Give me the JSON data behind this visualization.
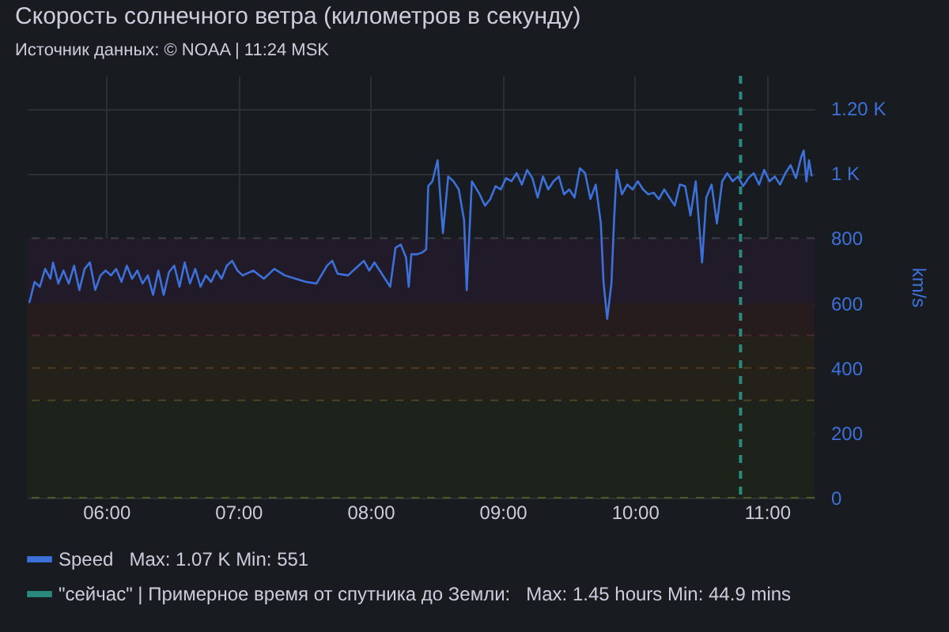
{
  "chart_data": {
    "type": "line",
    "title": "Скорость солнечного ветра (километров в секунду)",
    "subtitle": "Источник данных: © NOAA | 11:24 MSK",
    "ylabel": "km/s",
    "annotations": [
      "Max: 1.07 K  Min: 551",
      "Max: 1.45 hours  Min: 44.9 mins"
    ],
    "xlim": [
      5.4,
      11.36
    ],
    "xticks": [
      {
        "value": 6,
        "label": "06:00"
      },
      {
        "value": 7,
        "label": "07:00"
      },
      {
        "value": 8,
        "label": "08:00"
      },
      {
        "value": 9,
        "label": "09:00"
      },
      {
        "value": 10,
        "label": "10:00"
      },
      {
        "value": 11,
        "label": "11:00"
      }
    ],
    "ylim": [
      0,
      1300
    ],
    "yticks": [
      0,
      200,
      400,
      600,
      800,
      {
        "value": 1000,
        "label": "1 K"
      },
      {
        "value": 1200,
        "label": "1.20 K"
      }
    ],
    "grid": true,
    "legend": "bottom",
    "line_style": "solid",
    "bands": [
      {
        "axis": "y",
        "from": 0,
        "to": 300,
        "label": null,
        "color": "#1d231b"
      },
      {
        "axis": "y",
        "from": 300,
        "to": 500,
        "label": null,
        "color": "#232119"
      },
      {
        "axis": "y",
        "from": 500,
        "to": 600,
        "label": null,
        "color": "#261c1e"
      },
      {
        "axis": "y",
        "from": 600,
        "to": 800,
        "label": null,
        "color": "#211b29"
      }
    ],
    "ref_lines": [
      {
        "axis": "y",
        "value": 0,
        "label": null,
        "color": "#4a5a22",
        "line_style": "dashed"
      },
      {
        "axis": "y",
        "value": 300,
        "label": null,
        "color": "#4a4622",
        "line_style": "dashed"
      },
      {
        "axis": "y",
        "value": 400,
        "label": null,
        "color": "#553a22",
        "line_style": "dashed"
      },
      {
        "axis": "y",
        "value": 500,
        "label": null,
        "color": "#4a2a26",
        "line_style": "dashed"
      },
      {
        "axis": "y",
        "value": 800,
        "label": null,
        "color": "#3a4048",
        "line_style": "dashed"
      },
      {
        "axis": "x",
        "value": 10.8,
        "label": "\"сейчас\" | Примерное время от спутника до Земли:",
        "color": "#2a8a7e",
        "line_style": "dashed"
      }
    ],
    "series": [
      {
        "name": "Speed",
        "color": "#3d71d9",
        "x": [
          5.418,
          5.458,
          5.498,
          5.538,
          5.578,
          5.598,
          5.638,
          5.677,
          5.717,
          5.757,
          5.797,
          5.837,
          5.877,
          5.917,
          5.957,
          5.996,
          6.036,
          6.076,
          6.116,
          6.156,
          6.196,
          6.236,
          6.275,
          6.315,
          6.355,
          6.395,
          6.435,
          6.475,
          6.515,
          6.555,
          6.594,
          6.634,
          6.674,
          6.714,
          6.754,
          6.794,
          6.834,
          6.873,
          6.913,
          6.953,
          6.993,
          7.033,
          7.113,
          7.193,
          7.272,
          7.352,
          7.432,
          7.511,
          7.591,
          7.671,
          7.711,
          7.751,
          7.83,
          7.91,
          7.95,
          7.99,
          8.03,
          8.07,
          8.149,
          8.189,
          8.229,
          8.269,
          8.289,
          8.309,
          8.349,
          8.389,
          8.421,
          8.437,
          8.468,
          8.508,
          8.548,
          8.588,
          8.628,
          8.668,
          8.708,
          8.728,
          8.767,
          8.826,
          8.866,
          8.906,
          8.946,
          8.986,
          9.026,
          9.066,
          9.106,
          9.145,
          9.185,
          9.225,
          9.265,
          9.305,
          9.345,
          9.385,
          9.425,
          9.464,
          9.504,
          9.544,
          9.584,
          9.624,
          9.664,
          9.704,
          9.743,
          9.763,
          9.791,
          9.823,
          9.843,
          9.863,
          9.903,
          9.943,
          9.983,
          10.023,
          10.062,
          10.102,
          10.142,
          10.182,
          10.222,
          10.262,
          10.302,
          10.341,
          10.381,
          10.421,
          10.461,
          10.481,
          10.509,
          10.541,
          10.581,
          10.621,
          10.661,
          10.7,
          10.74,
          10.78,
          10.82,
          10.86,
          10.9,
          10.94,
          10.979,
          11.019,
          11.059,
          11.099,
          11.139,
          11.179,
          11.219,
          11.259,
          11.278,
          11.298,
          11.318,
          11.338
        ],
        "values": [
          600,
          665,
          650,
          705,
          675,
          725,
          660,
          700,
          660,
          715,
          640,
          705,
          725,
          640,
          685,
          700,
          685,
          705,
          665,
          715,
          675,
          700,
          660,
          685,
          625,
          700,
          625,
          695,
          715,
          650,
          725,
          660,
          705,
          650,
          685,
          665,
          700,
          675,
          715,
          730,
          700,
          685,
          700,
          675,
          705,
          685,
          675,
          665,
          660,
          715,
          730,
          690,
          685,
          715,
          730,
          700,
          725,
          700,
          650,
          770,
          780,
          740,
          650,
          750,
          750,
          755,
          765,
          960,
          975,
          1040,
          815,
          990,
          975,
          950,
          855,
          640,
          975,
          935,
          900,
          920,
          960,
          950,
          985,
          975,
          1000,
          965,
          1010,
          985,
          925,
          990,
          950,
          975,
          990,
          935,
          950,
          925,
          1015,
          1000,
          920,
          965,
          845,
          665,
          551,
          660,
          855,
          1010,
          935,
          965,
          950,
          975,
          950,
          935,
          940,
          920,
          950,
          925,
          900,
          965,
          960,
          870,
          975,
          870,
          725,
          925,
          965,
          845,
          975,
          1000,
          975,
          990,
          960,
          985,
          1000,
          965,
          1010,
          975,
          990,
          965,
          1000,
          1025,
          985,
          1050,
          1070,
          975,
          1040,
          990
        ]
      }
    ]
  }
}
